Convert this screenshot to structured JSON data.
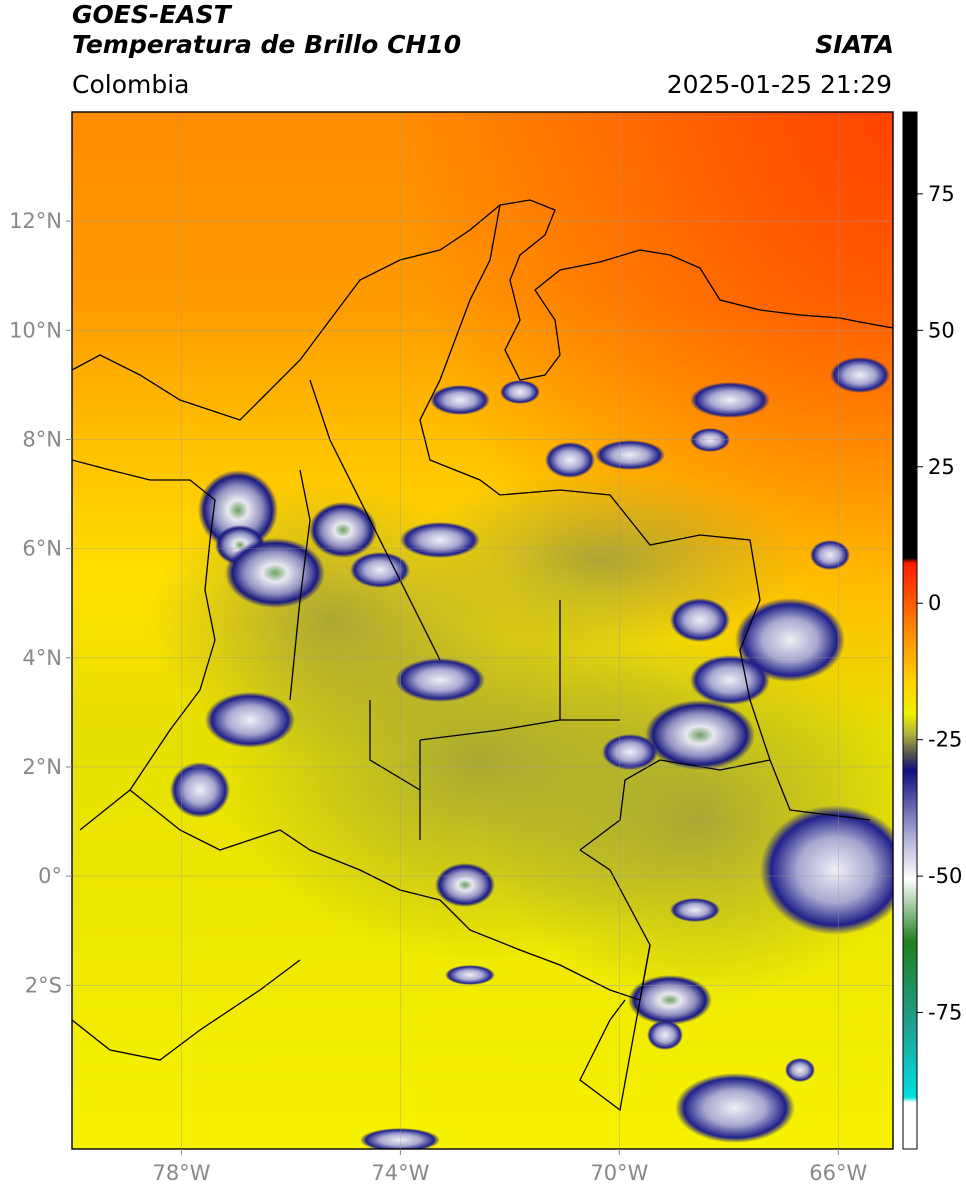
{
  "header": {
    "title_line1": "GOES-EAST",
    "title_line2": "Temperatura de Brillo CH10",
    "subtitle": "Colombia",
    "brand": "SIATA",
    "datetime": "2025-01-25 21:29"
  },
  "map": {
    "lon_range": [
      -80,
      -65
    ],
    "lat_range": [
      -5,
      14
    ],
    "lat_ticks": [
      {
        "value": 12,
        "label": "12°N"
      },
      {
        "value": 10,
        "label": "10°N"
      },
      {
        "value": 8,
        "label": "8°N"
      },
      {
        "value": 6,
        "label": "6°N"
      },
      {
        "value": 4,
        "label": "4°N"
      },
      {
        "value": 2,
        "label": "2°N"
      },
      {
        "value": 0,
        "label": "0°"
      },
      {
        "value": -2,
        "label": "2°S"
      }
    ],
    "lon_ticks": [
      {
        "value": -78,
        "label": "78°W"
      },
      {
        "value": -74,
        "label": "74°W"
      },
      {
        "value": -70,
        "label": "70°W"
      },
      {
        "value": -66,
        "label": "66°W"
      }
    ],
    "grid": true,
    "colors": {
      "warm": "#ff6a00",
      "mid": "#ffd000",
      "cool": "#f0ee00",
      "olive": "#b8b23a",
      "cloud_dark": "#1a1a80",
      "cloud_light": "#e8e8f0",
      "cloud_core": "#6aa060"
    }
  },
  "colorbar": {
    "range": [
      -100,
      90
    ],
    "ticks": [
      {
        "value": 75,
        "label": "75"
      },
      {
        "value": 50,
        "label": "50"
      },
      {
        "value": 25,
        "label": "25"
      },
      {
        "value": 0,
        "label": "0"
      },
      {
        "value": -25,
        "label": "-25"
      },
      {
        "value": -50,
        "label": "-50"
      },
      {
        "value": -75,
        "label": "-75"
      }
    ]
  }
}
